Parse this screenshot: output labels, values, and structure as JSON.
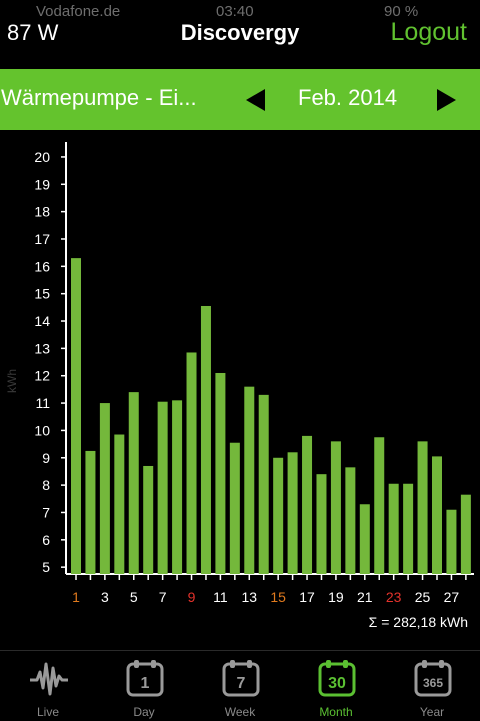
{
  "status_bar": {
    "carrier": "Vodafone.de",
    "time": "03:40",
    "battery": "90 %"
  },
  "header": {
    "power": "87 W",
    "title": "Discovergy",
    "logout_label": "Logout"
  },
  "selector": {
    "meter_name": "Wärmepumpe - Ei...",
    "period": "Feb. 2014"
  },
  "colors": {
    "accent": "#64c32d",
    "bar": "#74b83b",
    "weekend_orange": "#e07a1e",
    "weekend_red": "#e4322b"
  },
  "chart_data": {
    "type": "bar",
    "ylabel": "kWh",
    "ylim": [
      4.75,
      20.4
    ],
    "yticks": [
      5,
      6,
      7,
      8,
      9,
      10,
      11,
      12,
      13,
      14,
      15,
      16,
      17,
      18,
      19,
      20
    ],
    "days": [
      1,
      2,
      3,
      4,
      5,
      6,
      7,
      8,
      9,
      10,
      11,
      12,
      13,
      14,
      15,
      16,
      17,
      18,
      19,
      20,
      21,
      22,
      23,
      24,
      25,
      26,
      27,
      28
    ],
    "values": [
      16.3,
      9.25,
      11.0,
      9.85,
      11.4,
      8.7,
      11.05,
      11.1,
      12.85,
      14.55,
      12.1,
      9.55,
      11.6,
      11.3,
      9.0,
      9.2,
      9.8,
      8.4,
      9.6,
      8.65,
      7.3,
      9.75,
      8.05,
      8.05,
      9.6,
      9.05,
      7.1,
      7.65
    ],
    "xtick_labels": [
      {
        "day": 1,
        "label": "1",
        "color": "orange"
      },
      {
        "day": 3,
        "label": "3",
        "color": "white"
      },
      {
        "day": 5,
        "label": "5",
        "color": "white"
      },
      {
        "day": 7,
        "label": "7",
        "color": "white"
      },
      {
        "day": 9,
        "label": "9",
        "color": "red"
      },
      {
        "day": 11,
        "label": "11",
        "color": "white"
      },
      {
        "day": 13,
        "label": "13",
        "color": "white"
      },
      {
        "day": 15,
        "label": "15",
        "color": "orange"
      },
      {
        "day": 17,
        "label": "17",
        "color": "white"
      },
      {
        "day": 19,
        "label": "19",
        "color": "white"
      },
      {
        "day": 21,
        "label": "21",
        "color": "white"
      },
      {
        "day": 23,
        "label": "23",
        "color": "red"
      },
      {
        "day": 25,
        "label": "25",
        "color": "white"
      },
      {
        "day": 27,
        "label": "27",
        "color": "white"
      }
    ],
    "sum_label": "Σ = 282,18 kWh"
  },
  "tabs": [
    {
      "id": "live",
      "label": "Live",
      "icon": "waveform-icon",
      "active": false
    },
    {
      "id": "day",
      "label": "Day",
      "icon_text": "1",
      "active": false
    },
    {
      "id": "week",
      "label": "Week",
      "icon_text": "7",
      "active": false
    },
    {
      "id": "month",
      "label": "Month",
      "icon_text": "30",
      "active": true
    },
    {
      "id": "year",
      "label": "Year",
      "icon_text": "365",
      "active": false
    }
  ]
}
